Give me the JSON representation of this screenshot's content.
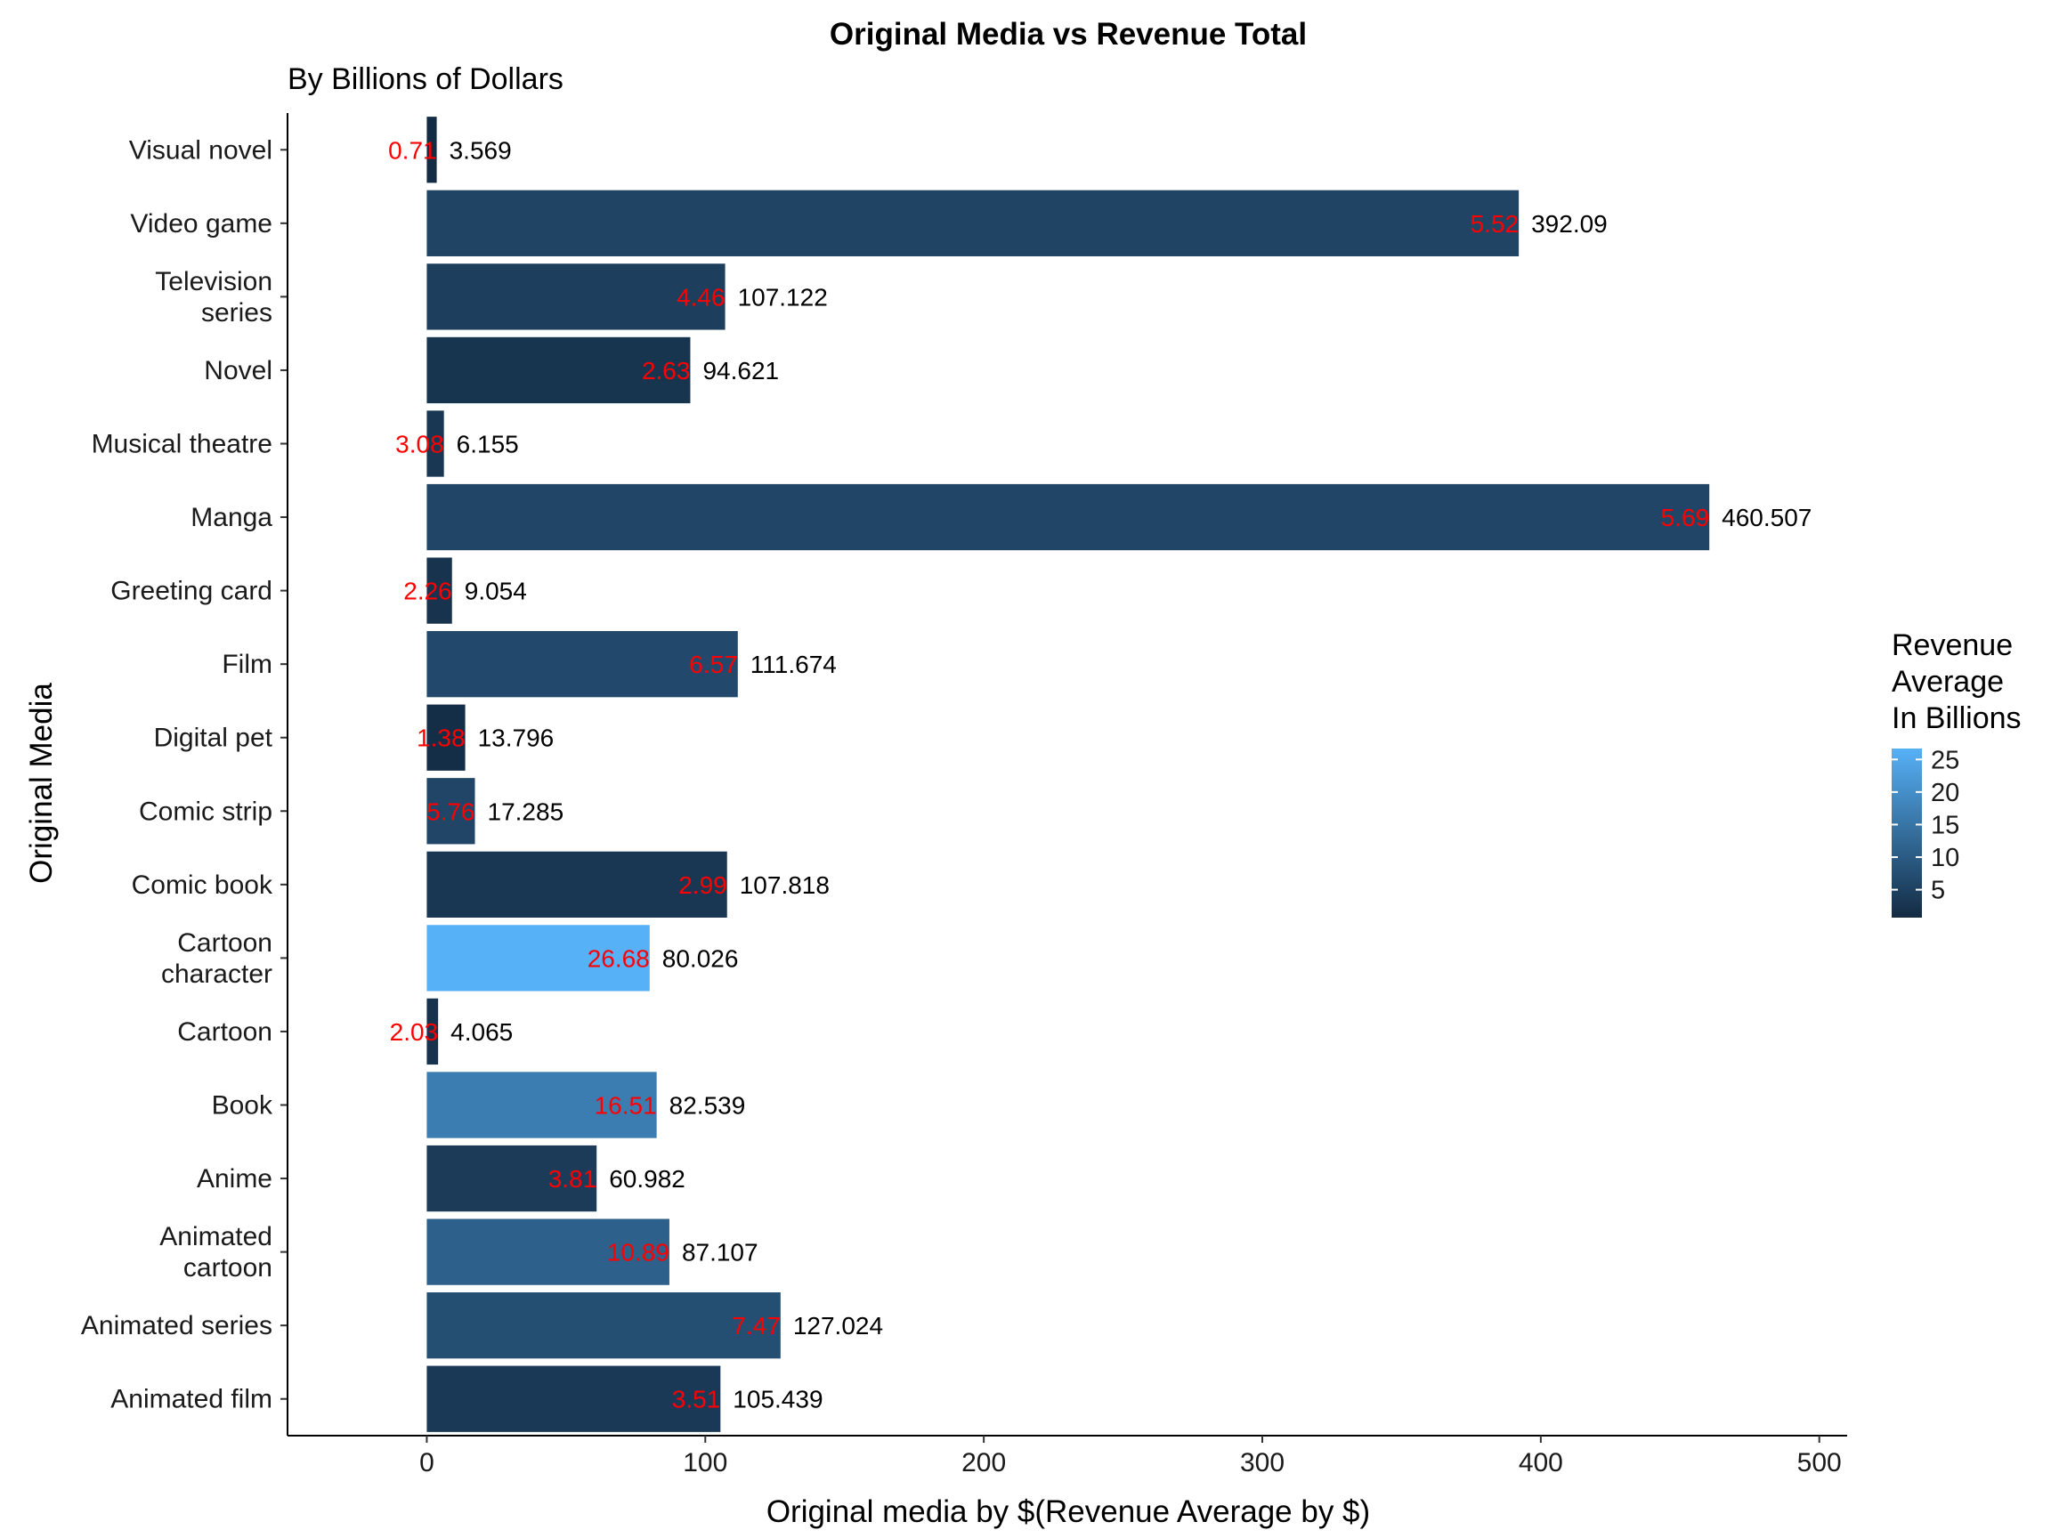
{
  "chart_data": {
    "type": "bar",
    "orientation": "horizontal",
    "title": "Original Media vs Revenue Total",
    "subtitle": "By Billions of Dollars",
    "xlabel": "Original media by $(Revenue Average by $)",
    "ylabel": "Original Media",
    "xlim": [
      -50,
      510
    ],
    "xticks": [
      0,
      100,
      200,
      300,
      400,
      500
    ],
    "grid": false,
    "categories": [
      "Animated film",
      "Animated series",
      "Animated cartoon",
      "Anime",
      "Book",
      "Cartoon",
      "Cartoon character",
      "Comic book",
      "Comic strip",
      "Digital pet",
      "Film",
      "Greeting card",
      "Manga",
      "Musical theatre",
      "Novel",
      "Television series",
      "Video game",
      "Visual novel"
    ],
    "category_labels": [
      [
        "Animated film"
      ],
      [
        "Animated series"
      ],
      [
        "Animated",
        "cartoon"
      ],
      [
        "Anime"
      ],
      [
        "Book"
      ],
      [
        "Cartoon"
      ],
      [
        "Cartoon",
        "character"
      ],
      [
        "Comic book"
      ],
      [
        "Comic strip"
      ],
      [
        "Digital pet"
      ],
      [
        "Film"
      ],
      [
        "Greeting card"
      ],
      [
        "Manga"
      ],
      [
        "Musical theatre"
      ],
      [
        "Novel"
      ],
      [
        "Television",
        "series"
      ],
      [
        "Video game"
      ],
      [
        "Visual novel"
      ]
    ],
    "values": [
      105.439,
      127.024,
      87.107,
      60.982,
      82.539,
      4.065,
      80.026,
      107.818,
      17.285,
      13.796,
      111.674,
      9.054,
      460.507,
      6.155,
      94.621,
      107.122,
      392.09,
      3.569
    ],
    "value_labels": [
      "105.439",
      "127.024",
      "87.107",
      "60.982",
      "82.539",
      "4.065",
      "80.026",
      "107.818",
      "17.285",
      "13.796",
      "111.674",
      "9.054",
      "460.507",
      "6.155",
      "94.621",
      "107.122",
      "392.09",
      "3.569"
    ],
    "fill_values": [
      3.51,
      7.47,
      10.89,
      3.81,
      16.51,
      2.03,
      26.68,
      2.99,
      5.76,
      1.38,
      6.57,
      2.26,
      5.69,
      3.08,
      2.63,
      4.46,
      5.52,
      0.71
    ],
    "fill_labels": [
      "3.51",
      "7.47",
      "10.89",
      "3.81",
      "16.51",
      "2.03",
      "26.68",
      "2.99",
      "5.76",
      "1.38",
      "6.57",
      "2.26",
      "5.69",
      "3.08",
      "2.63",
      "4.46",
      "5.52",
      "0.71"
    ],
    "legend": {
      "title_lines": [
        "Revenue",
        "Average",
        "In Billions"
      ],
      "ticks": [
        5,
        10,
        15,
        20,
        25
      ],
      "range": [
        0.71,
        26.68
      ],
      "color_low": "#132b43",
      "color_high": "#56b1f7",
      "placement": "right"
    },
    "avg_label_color": "#ff0000"
  }
}
